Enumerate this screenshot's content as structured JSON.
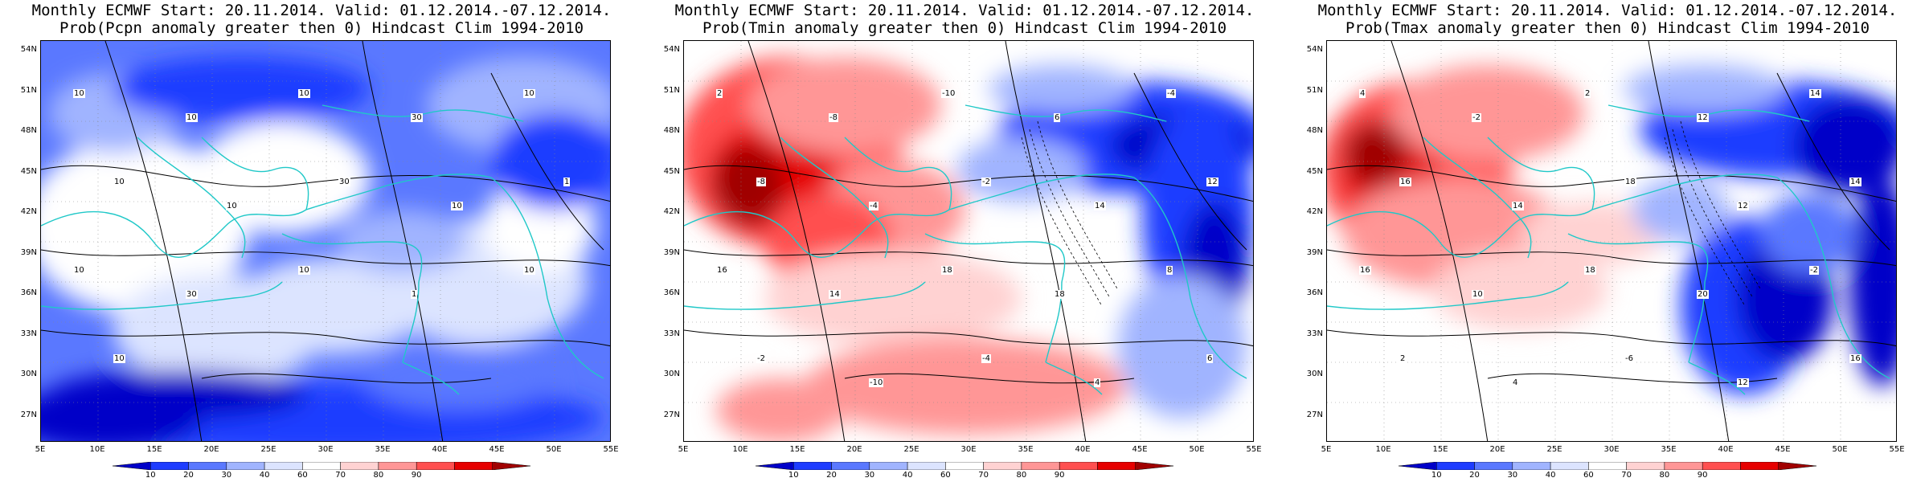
{
  "panels": [
    {
      "title_line1": "Monthly ECMWF Start: 20.11.2014. Valid: 01.12.2014.-07.12.2014.",
      "title_line2": "Prob(Pcpn anomaly greater then 0) Hindcast Clim 1994-2010",
      "variable": "precipitation",
      "contour_labels": [
        "10",
        "10",
        "10",
        "30",
        "10",
        "10",
        "10",
        "30",
        "10",
        "1",
        "10",
        "30",
        "10",
        "1",
        "10",
        "10"
      ]
    },
    {
      "title_line1": "Monthly ECMWF Start: 20.11.2014. Valid: 01.12.2014.-07.12.2014.",
      "title_line2": "Prob(Tmin anomaly greater then 0) Hindcast Clim 1994-2010",
      "variable": "tmin",
      "contour_labels": [
        "2",
        "-8",
        "-10",
        "6",
        "-4",
        "-8",
        "-4",
        "-2",
        "14",
        "12",
        "16",
        "14",
        "18",
        "18",
        "8",
        "-2",
        "-10",
        "-4",
        "4",
        "6"
      ]
    },
    {
      "title_line1": "Monthly ECMWF Start: 20.11.2014. Valid: 01.12.2014.-07.12.2014.",
      "title_line2": "Prob(Tmax anomaly greater then 0) Hindcast Clim 1994-2010",
      "variable": "tmax",
      "contour_labels": [
        "4",
        "-2",
        "2",
        "12",
        "14",
        "16",
        "14",
        "18",
        "12",
        "14",
        "16",
        "10",
        "18",
        "20",
        "-2",
        "2",
        "4",
        "-6",
        "12",
        "16"
      ]
    }
  ],
  "lat_ticks": [
    "54N",
    "51N",
    "48N",
    "45N",
    "42N",
    "39N",
    "36N",
    "33N",
    "30N",
    "27N"
  ],
  "lon_ticks": [
    "5E",
    "10E",
    "15E",
    "20E",
    "25E",
    "30E",
    "35E",
    "40E",
    "45E",
    "50E",
    "55E"
  ],
  "colorbar": {
    "labels": [
      "10",
      "20",
      "30",
      "40",
      "60",
      "70",
      "80",
      "90"
    ],
    "colors": [
      "#0000c8",
      "#1e3cff",
      "#5a78ff",
      "#a0b4ff",
      "#dce4ff",
      "#ffffff",
      "#ffd2d2",
      "#ff9696",
      "#ff5050",
      "#e60000",
      "#a00000"
    ]
  },
  "colors": {
    "coastline": "#20c8c8",
    "contour": "#000000"
  }
}
